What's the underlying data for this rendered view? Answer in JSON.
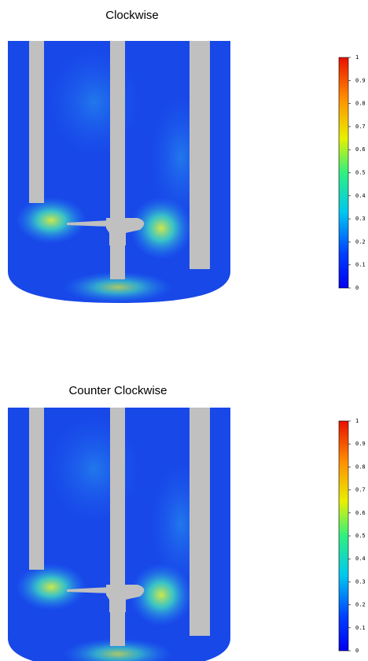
{
  "panels": [
    {
      "title": "Clockwise",
      "colorbar": {
        "clim": [
          0,
          1
        ],
        "ticks": [
          0,
          0.1,
          0.2,
          0.3,
          0.4,
          0.5,
          0.6,
          0.7,
          0.8,
          0.9,
          1
        ]
      }
    },
    {
      "title": "Counter Clockwise",
      "colorbar": {
        "clim": [
          0,
          1
        ],
        "ticks": [
          0,
          0.1,
          0.2,
          0.3,
          0.4,
          0.5,
          0.6,
          0.7,
          0.8,
          0.9,
          1
        ]
      }
    }
  ]
}
